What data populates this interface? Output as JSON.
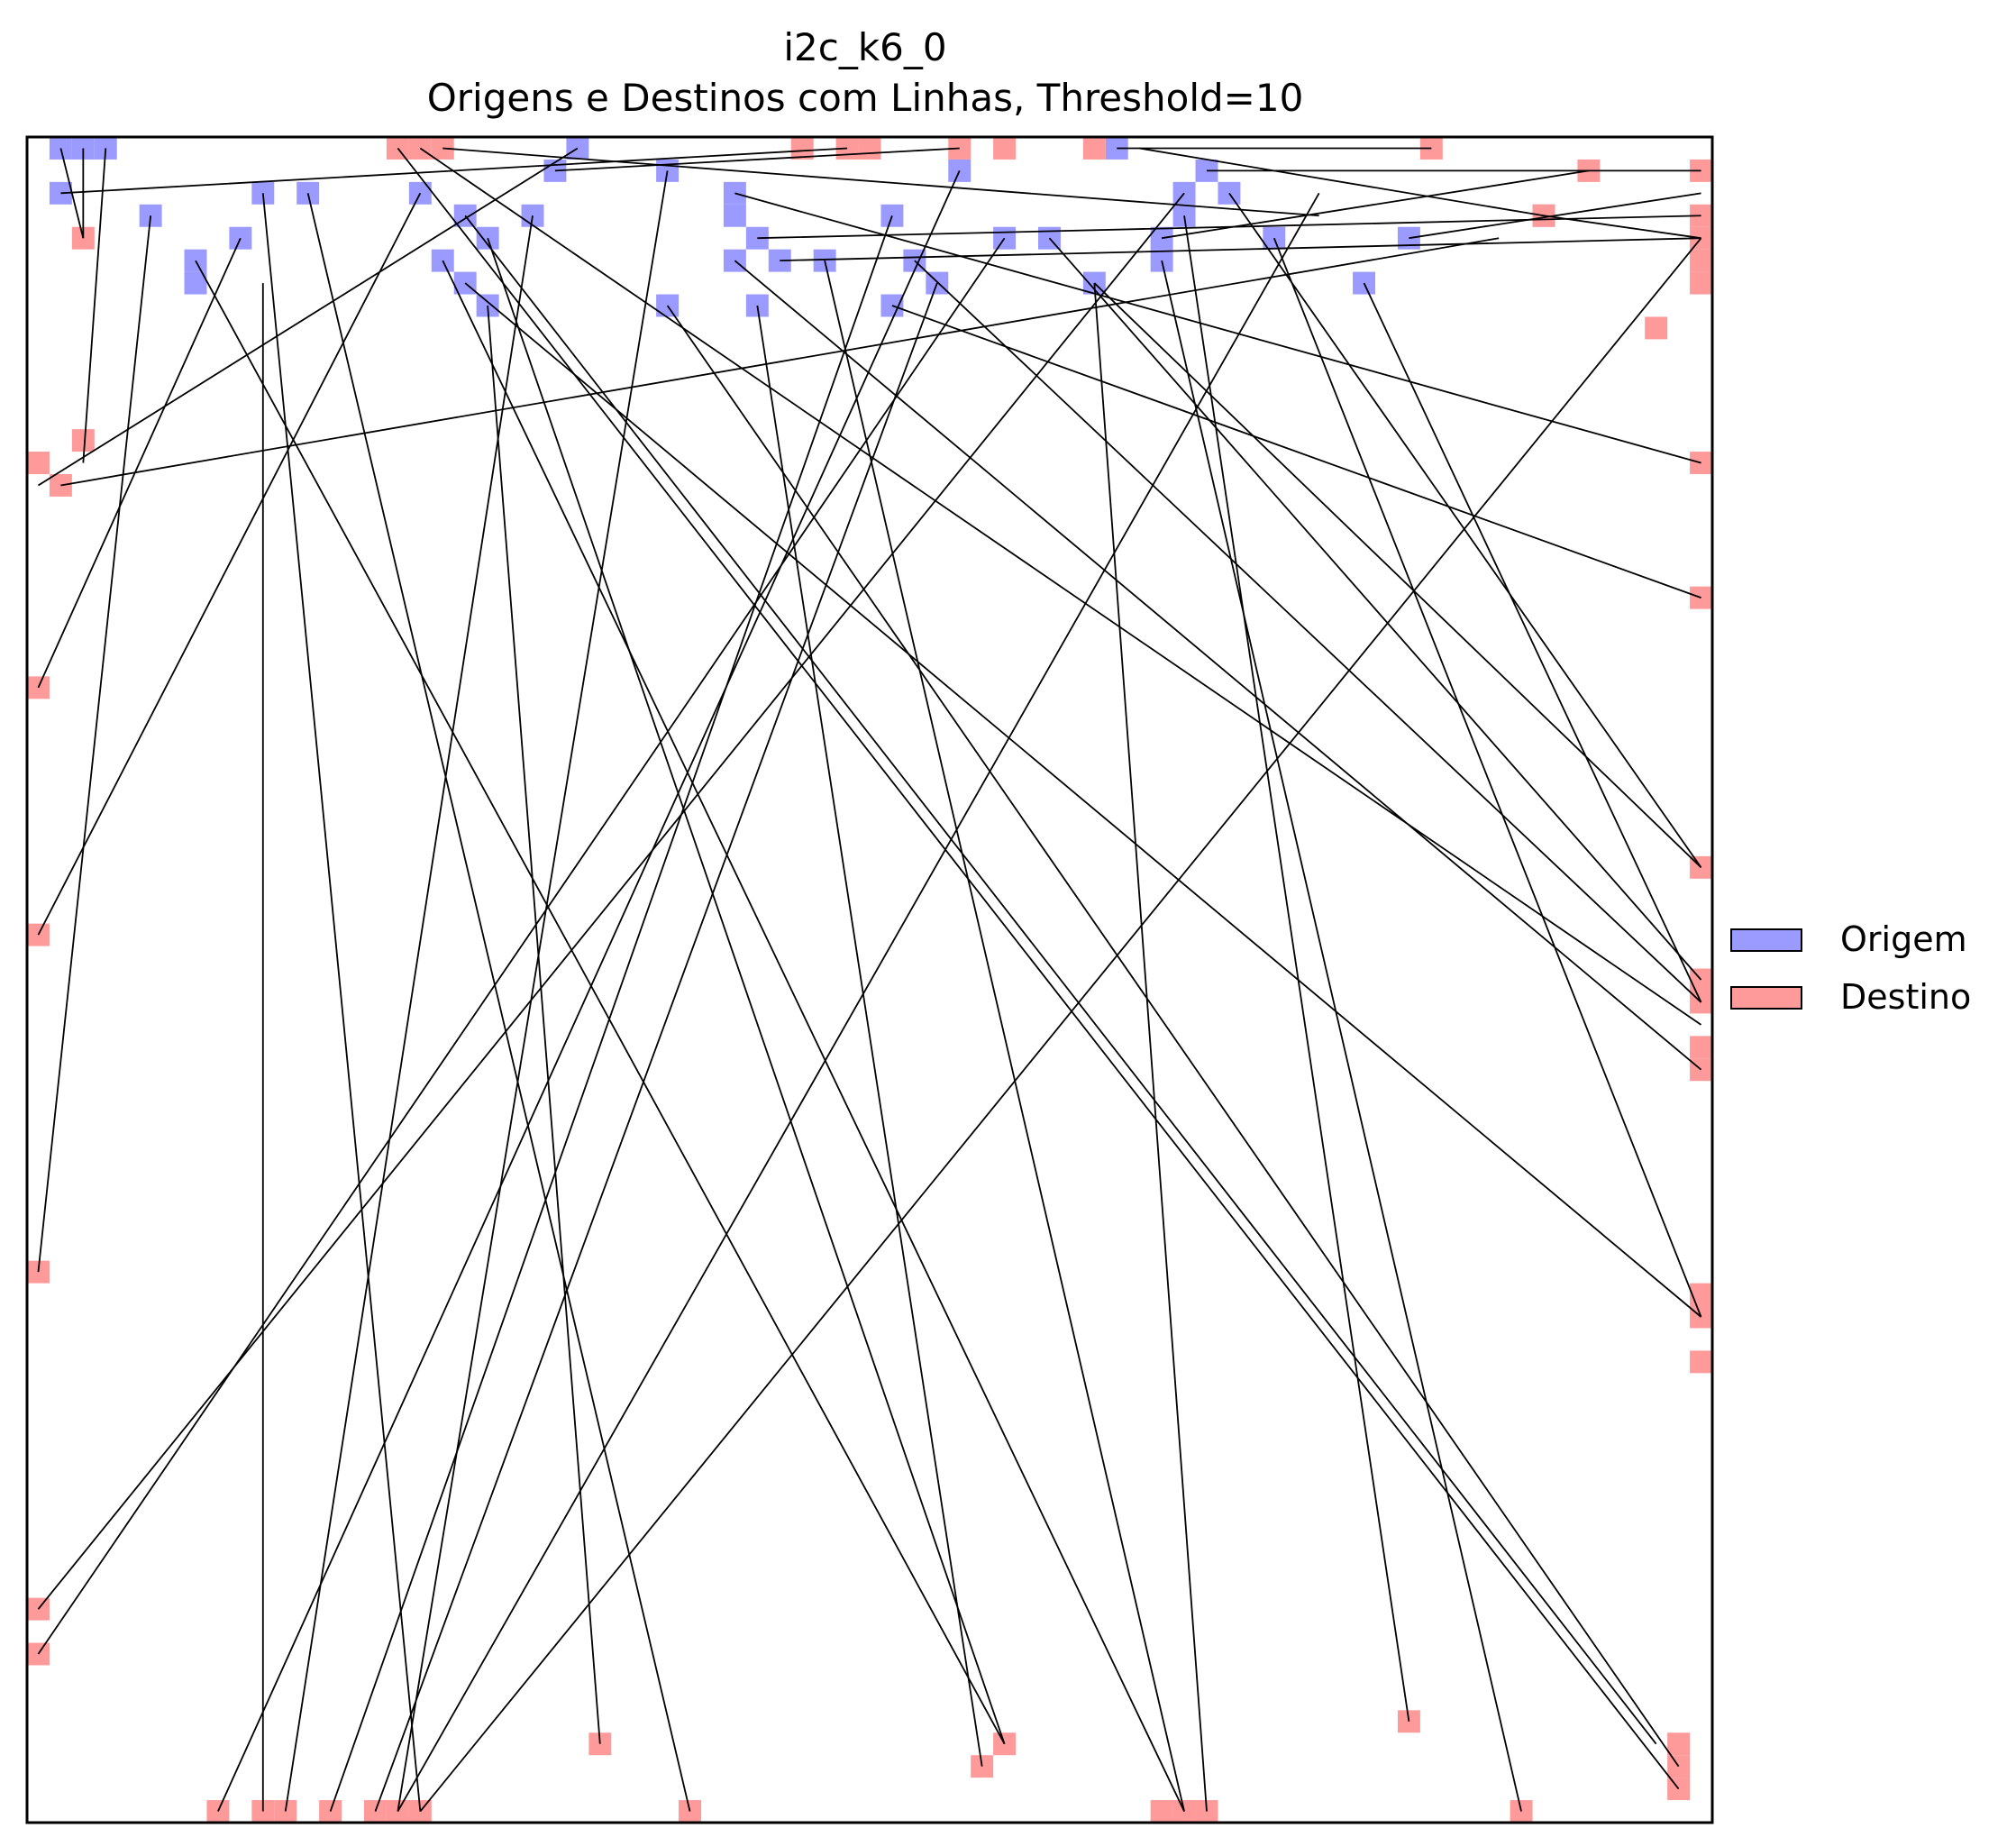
{
  "chart_data": {
    "type": "scatter",
    "title": "i2c_k6_0",
    "subtitle": "Origens e Destinos com Linhas, Threshold=10",
    "xlim": [
      0,
      75
    ],
    "ylim": [
      0,
      75
    ],
    "grid": false,
    "axes_visible": false,
    "legend_placement": "right",
    "colors": {
      "origin": "#9a9aff",
      "destination": "#ff9a9a",
      "line": "#000000",
      "frame": "#000000"
    },
    "legend": [
      {
        "label": "Origem",
        "color": "#9a9aff"
      },
      {
        "label": "Destino",
        "color": "#ff9a9a"
      }
    ],
    "origins": [
      [
        1,
        74
      ],
      [
        2,
        74
      ],
      [
        3,
        74
      ],
      [
        1,
        72
      ],
      [
        5,
        71
      ],
      [
        10,
        72
      ],
      [
        12,
        72
      ],
      [
        9,
        70
      ],
      [
        7,
        69
      ],
      [
        7,
        68
      ],
      [
        17,
        72
      ],
      [
        19,
        71
      ],
      [
        20,
        70
      ],
      [
        18,
        69
      ],
      [
        19,
        68
      ],
      [
        20,
        67
      ],
      [
        22,
        71
      ],
      [
        23,
        73
      ],
      [
        24,
        74
      ],
      [
        28,
        73
      ],
      [
        28,
        67
      ],
      [
        31,
        72
      ],
      [
        31,
        71
      ],
      [
        32,
        70
      ],
      [
        33,
        69
      ],
      [
        31,
        69
      ],
      [
        32,
        67
      ],
      [
        35,
        69
      ],
      [
        38,
        71
      ],
      [
        39,
        69
      ],
      [
        38,
        67
      ],
      [
        40,
        68
      ],
      [
        41,
        73
      ],
      [
        43,
        70
      ],
      [
        45,
        70
      ],
      [
        47,
        68
      ],
      [
        48,
        74
      ],
      [
        51,
        72
      ],
      [
        51,
        71
      ],
      [
        50,
        70
      ],
      [
        50,
        69
      ],
      [
        52,
        73
      ],
      [
        53,
        72
      ],
      [
        55,
        70
      ],
      [
        59,
        68
      ],
      [
        61,
        70
      ],
      [
        67,
        71
      ]
    ],
    "destinations": [
      [
        16,
        74
      ],
      [
        17,
        74
      ],
      [
        18,
        74
      ],
      [
        2,
        70
      ],
      [
        2,
        61
      ],
      [
        0,
        60
      ],
      [
        1,
        59
      ],
      [
        0,
        50
      ],
      [
        0,
        39
      ],
      [
        0,
        24
      ],
      [
        0,
        9
      ],
      [
        0,
        7
      ],
      [
        8,
        0
      ],
      [
        10,
        0
      ],
      [
        11,
        0
      ],
      [
        13,
        0
      ],
      [
        15,
        0
      ],
      [
        16,
        0
      ],
      [
        17,
        0
      ],
      [
        25,
        3
      ],
      [
        29,
        0
      ],
      [
        34,
        74
      ],
      [
        36,
        74
      ],
      [
        37,
        74
      ],
      [
        41,
        74
      ],
      [
        43,
        74
      ],
      [
        47,
        74
      ],
      [
        62,
        74
      ],
      [
        69,
        73
      ],
      [
        67,
        71
      ],
      [
        74,
        73
      ],
      [
        74,
        71
      ],
      [
        74,
        70
      ],
      [
        74,
        69
      ],
      [
        74,
        68
      ],
      [
        72,
        66
      ],
      [
        74,
        60
      ],
      [
        74,
        54
      ],
      [
        74,
        42
      ],
      [
        74,
        37
      ],
      [
        74,
        36
      ],
      [
        74,
        34
      ],
      [
        74,
        33
      ],
      [
        74,
        23
      ],
      [
        74,
        22
      ],
      [
        74,
        20
      ],
      [
        43,
        3
      ],
      [
        42,
        2
      ],
      [
        50,
        0
      ],
      [
        51,
        0
      ],
      [
        52,
        0
      ],
      [
        61,
        4
      ],
      [
        66,
        0
      ],
      [
        73,
        3
      ],
      [
        73,
        2
      ],
      [
        73,
        1
      ]
    ],
    "connections": [
      [
        [
          1,
          74
        ],
        [
          2,
          70
        ]
      ],
      [
        [
          2,
          74
        ],
        [
          2,
          70
        ]
      ],
      [
        [
          3,
          74
        ],
        [
          2,
          60
        ]
      ],
      [
        [
          1,
          72
        ],
        [
          36,
          74
        ]
      ],
      [
        [
          5,
          71
        ],
        [
          0,
          24
        ]
      ],
      [
        [
          10,
          72
        ],
        [
          17,
          0
        ]
      ],
      [
        [
          12,
          72
        ],
        [
          29,
          0
        ]
      ],
      [
        [
          9,
          70
        ],
        [
          0,
          50
        ]
      ],
      [
        [
          7,
          69
        ],
        [
          43,
          3
        ]
      ],
      [
        [
          10,
          68
        ],
        [
          10,
          0
        ]
      ],
      [
        [
          17,
          72
        ],
        [
          0,
          39
        ]
      ],
      [
        [
          19,
          71
        ],
        [
          72,
          3
        ]
      ],
      [
        [
          20,
          70
        ],
        [
          43,
          3
        ]
      ],
      [
        [
          18,
          69
        ],
        [
          51,
          0
        ]
      ],
      [
        [
          19,
          68
        ],
        [
          74,
          22
        ]
      ],
      [
        [
          20,
          67
        ],
        [
          25,
          3
        ]
      ],
      [
        [
          22,
          71
        ],
        [
          11,
          0
        ]
      ],
      [
        [
          23,
          73
        ],
        [
          41,
          74
        ]
      ],
      [
        [
          24,
          74
        ],
        [
          0,
          59
        ]
      ],
      [
        [
          28,
          73
        ],
        [
          16,
          0
        ]
      ],
      [
        [
          28,
          67
        ],
        [
          73,
          2
        ]
      ],
      [
        [
          31,
          72
        ],
        [
          74,
          60
        ]
      ],
      [
        [
          32,
          70
        ],
        [
          74,
          71
        ]
      ],
      [
        [
          33,
          69
        ],
        [
          74,
          70
        ]
      ],
      [
        [
          31,
          69
        ],
        [
          74,
          33
        ]
      ],
      [
        [
          32,
          67
        ],
        [
          42,
          2
        ]
      ],
      [
        [
          35,
          69
        ],
        [
          51,
          0
        ]
      ],
      [
        [
          38,
          71
        ],
        [
          13,
          0
        ]
      ],
      [
        [
          38,
          67
        ],
        [
          74,
          54
        ]
      ],
      [
        [
          40,
          68
        ],
        [
          15,
          0
        ]
      ],
      [
        [
          43,
          70
        ],
        [
          0,
          7
        ]
      ],
      [
        [
          45,
          70
        ],
        [
          74,
          37
        ]
      ],
      [
        [
          47,
          68
        ],
        [
          74,
          42
        ]
      ],
      [
        [
          48,
          74
        ],
        [
          62,
          74
        ]
      ],
      [
        [
          51,
          72
        ],
        [
          0,
          9
        ]
      ],
      [
        [
          50,
          69
        ],
        [
          66,
          0
        ]
      ],
      [
        [
          52,
          73
        ],
        [
          74,
          73
        ]
      ],
      [
        [
          55,
          70
        ],
        [
          74,
          22
        ]
      ],
      [
        [
          59,
          68
        ],
        [
          74,
          36
        ]
      ],
      [
        [
          61,
          70
        ],
        [
          74,
          72
        ]
      ],
      [
        [
          67,
          71
        ],
        [
          74,
          70
        ]
      ],
      [
        [
          18,
          74
        ],
        [
          57,
          71
        ]
      ],
      [
        [
          17,
          74
        ],
        [
          74,
          35
        ]
      ],
      [
        [
          16,
          74
        ],
        [
          73,
          1
        ]
      ],
      [
        [
          39,
          69
        ],
        [
          74,
          36
        ]
      ],
      [
        [
          51,
          71
        ],
        [
          61,
          4
        ]
      ],
      [
        [
          50,
          70
        ],
        [
          69,
          73
        ]
      ],
      [
        [
          53,
          72
        ],
        [
          74,
          42
        ]
      ],
      [
        [
          41,
          73
        ],
        [
          8,
          0
        ]
      ],
      [
        [
          57,
          72
        ],
        [
          16,
          0
        ]
      ],
      [
        [
          74,
          70
        ],
        [
          17,
          0
        ]
      ],
      [
        [
          65,
          70
        ],
        [
          1,
          59
        ]
      ],
      [
        [
          47,
          68
        ],
        [
          52,
          0
        ]
      ],
      [
        [
          49,
          74
        ],
        [
          67,
          71
        ]
      ]
    ]
  }
}
